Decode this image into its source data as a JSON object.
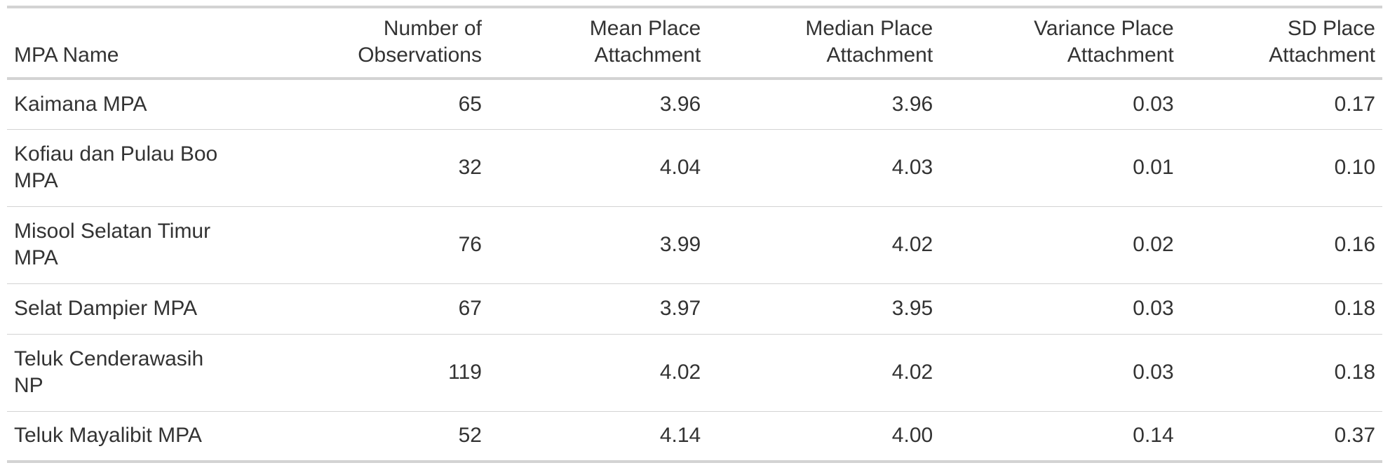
{
  "table": {
    "columns": [
      {
        "key": "name",
        "label_lines": [
          "",
          "MPA Name"
        ]
      },
      {
        "key": "n",
        "label_lines": [
          "Number of",
          "Observations"
        ]
      },
      {
        "key": "mean",
        "label_lines": [
          "Mean Place",
          "Attachment"
        ]
      },
      {
        "key": "median",
        "label_lines": [
          "Median Place",
          "Attachment"
        ]
      },
      {
        "key": "variance",
        "label_lines": [
          "Variance Place",
          "Attachment"
        ]
      },
      {
        "key": "sd",
        "label_lines": [
          "SD Place",
          "Attachment"
        ]
      }
    ],
    "rows": [
      {
        "name_lines": [
          "Kaimana MPA"
        ],
        "n": "65",
        "mean": "3.96",
        "median": "3.96",
        "variance": "0.03",
        "sd": "0.17"
      },
      {
        "name_lines": [
          "Kofiau dan Pulau Boo",
          "MPA"
        ],
        "n": "32",
        "mean": "4.04",
        "median": "4.03",
        "variance": "0.01",
        "sd": "0.10"
      },
      {
        "name_lines": [
          "Misool Selatan Timur",
          "MPA"
        ],
        "n": "76",
        "mean": "3.99",
        "median": "4.02",
        "variance": "0.02",
        "sd": "0.16"
      },
      {
        "name_lines": [
          "Selat Dampier MPA"
        ],
        "n": "67",
        "mean": "3.97",
        "median": "3.95",
        "variance": "0.03",
        "sd": "0.18"
      },
      {
        "name_lines": [
          "Teluk Cenderawasih",
          "NP"
        ],
        "n": "119",
        "mean": "4.02",
        "median": "4.02",
        "variance": "0.03",
        "sd": "0.18"
      },
      {
        "name_lines": [
          "Teluk Mayalibit MPA"
        ],
        "n": "52",
        "mean": "4.14",
        "median": "4.00",
        "variance": "0.14",
        "sd": "0.37"
      }
    ]
  },
  "colors": {
    "text": "#333333",
    "rule": "#d3d3d3"
  }
}
